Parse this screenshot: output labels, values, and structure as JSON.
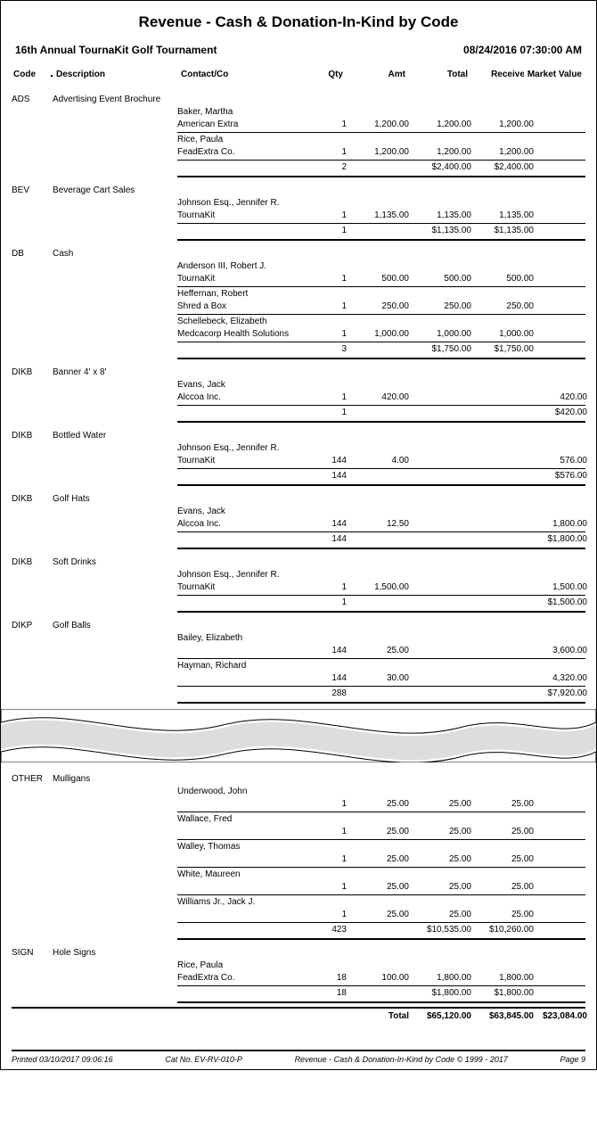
{
  "title": "Revenue - Cash & Donation-In-Kind by Code",
  "event": "16th Annual TournaKit Golf Tournament",
  "datetime": "08/24/2016 07:30:00 AM",
  "columns": {
    "code": "Code",
    "description": "Description",
    "contact": "Contact/Co",
    "qty": "Qty",
    "amt": "Amt",
    "total": "Total",
    "received": "Received",
    "market": "Market Value"
  },
  "sections_top": [
    {
      "code": "ADS",
      "description": "Advertising Event Brochure",
      "entries": [
        {
          "contact": "Baker, Martha",
          "company": "American Extra",
          "qty": "1",
          "amt": "1,200.00",
          "total": "1,200.00",
          "received": "1,200.00",
          "market": ""
        },
        {
          "contact": "Rice, Paula",
          "company": "FeadExtra Co.",
          "qty": "1",
          "amt": "1,200.00",
          "total": "1,200.00",
          "received": "1,200.00",
          "market": ""
        }
      ],
      "subtotal": {
        "qty": "2",
        "amt": "",
        "total": "$2,400.00",
        "received": "$2,400.00",
        "market": ""
      }
    },
    {
      "code": "BEV",
      "description": "Beverage Cart Sales",
      "entries": [
        {
          "contact": "Johnson Esq., Jennifer R.",
          "company": "TournaKit",
          "qty": "1",
          "amt": "1,135.00",
          "total": "1,135.00",
          "received": "1,135.00",
          "market": ""
        }
      ],
      "subtotal": {
        "qty": "1",
        "amt": "",
        "total": "$1,135.00",
        "received": "$1,135.00",
        "market": ""
      }
    },
    {
      "code": "DB",
      "description": "Cash",
      "entries": [
        {
          "contact": "Anderson III, Robert J.",
          "company": "TournaKit",
          "qty": "1",
          "amt": "500.00",
          "total": "500.00",
          "received": "500.00",
          "market": ""
        },
        {
          "contact": "Heffernan, Robert",
          "company": "Shred a Box",
          "qty": "1",
          "amt": "250.00",
          "total": "250.00",
          "received": "250.00",
          "market": ""
        },
        {
          "contact": "Schellebeck, Elizabeth",
          "company": "Medcacorp Health Solutions",
          "qty": "1",
          "amt": "1,000.00",
          "total": "1,000.00",
          "received": "1,000.00",
          "market": ""
        }
      ],
      "subtotal": {
        "qty": "3",
        "amt": "",
        "total": "$1,750.00",
        "received": "$1,750.00",
        "market": ""
      }
    },
    {
      "code": "DIKB",
      "description": "Banner 4' x 8'",
      "entries": [
        {
          "contact": "Evans, Jack",
          "company": "Alccoa Inc.",
          "qty": "1",
          "amt": "420.00",
          "total": "",
          "received": "",
          "market": "420.00"
        }
      ],
      "subtotal": {
        "qty": "1",
        "amt": "",
        "total": "",
        "received": "",
        "market": "$420.00"
      }
    },
    {
      "code": "DIKB",
      "description": "Bottled Water",
      "entries": [
        {
          "contact": "Johnson Esq., Jennifer R.",
          "company": "TournaKit",
          "qty": "144",
          "amt": "4.00",
          "total": "",
          "received": "",
          "market": "576.00"
        }
      ],
      "subtotal": {
        "qty": "144",
        "amt": "",
        "total": "",
        "received": "",
        "market": "$576.00"
      }
    },
    {
      "code": "DIKB",
      "description": "Golf Hats",
      "entries": [
        {
          "contact": "Evans, Jack",
          "company": "Alccoa Inc.",
          "qty": "144",
          "amt": "12.50",
          "total": "",
          "received": "",
          "market": "1,800.00"
        }
      ],
      "subtotal": {
        "qty": "144",
        "amt": "",
        "total": "",
        "received": "",
        "market": "$1,800.00"
      }
    },
    {
      "code": "DIKB",
      "description": "Soft Drinks",
      "entries": [
        {
          "contact": "Johnson Esq., Jennifer R.",
          "company": "TournaKit",
          "qty": "1",
          "amt": "1,500.00",
          "total": "",
          "received": "",
          "market": "1,500.00"
        }
      ],
      "subtotal": {
        "qty": "1",
        "amt": "",
        "total": "",
        "received": "",
        "market": "$1,500.00"
      }
    },
    {
      "code": "DIKP",
      "description": "Golf Balls",
      "entries": [
        {
          "contact": "Bailey, Elizabeth",
          "company": "",
          "qty": "144",
          "amt": "25.00",
          "total": "",
          "received": "",
          "market": "3,600.00"
        },
        {
          "contact": "Hayman, Richard",
          "company": "",
          "qty": "144",
          "amt": "30.00",
          "total": "",
          "received": "",
          "market": "4,320.00"
        }
      ],
      "subtotal": {
        "qty": "288",
        "amt": "",
        "total": "",
        "received": "",
        "market": "$7,920.00"
      }
    }
  ],
  "sections_bottom": [
    {
      "code": "OTHER",
      "description": "Mulligans",
      "entries": [
        {
          "contact": "Underwood, John",
          "company": "",
          "qty": "1",
          "amt": "25.00",
          "total": "25.00",
          "received": "25.00",
          "market": ""
        },
        {
          "contact": "Wallace, Fred",
          "company": "",
          "qty": "1",
          "amt": "25.00",
          "total": "25.00",
          "received": "25.00",
          "market": ""
        },
        {
          "contact": "Walley, Thomas",
          "company": "",
          "qty": "1",
          "amt": "25.00",
          "total": "25.00",
          "received": "25.00",
          "market": ""
        },
        {
          "contact": "White, Maureen",
          "company": "",
          "qty": "1",
          "amt": "25.00",
          "total": "25.00",
          "received": "25.00",
          "market": ""
        },
        {
          "contact": "Williams Jr., Jack J.",
          "company": "",
          "qty": "1",
          "amt": "25.00",
          "total": "25.00",
          "received": "25.00",
          "market": ""
        }
      ],
      "subtotal": {
        "qty": "423",
        "amt": "",
        "total": "$10,535.00",
        "received": "$10,260.00",
        "market": ""
      }
    },
    {
      "code": "SIGN",
      "description": "Hole Signs",
      "entries": [
        {
          "contact": "Rice, Paula",
          "company": "FeadExtra Co.",
          "qty": "18",
          "amt": "100.00",
          "total": "1,800.00",
          "received": "1,800.00",
          "market": ""
        }
      ],
      "subtotal": {
        "qty": "18",
        "amt": "",
        "total": "$1,800.00",
        "received": "$1,800.00",
        "market": ""
      }
    }
  ],
  "grand": {
    "label": "Total",
    "total": "$65,120.00",
    "received": "$63,845.00",
    "market": "$23,084.00"
  },
  "footer": {
    "printed": "Printed  03/10/2017 09:06:16",
    "catno": "Cat No. EV-RV-010-P",
    "name": "Revenue - Cash & Donation-In-Kind by Code © 1999 - 2017",
    "page": "Page 9"
  }
}
